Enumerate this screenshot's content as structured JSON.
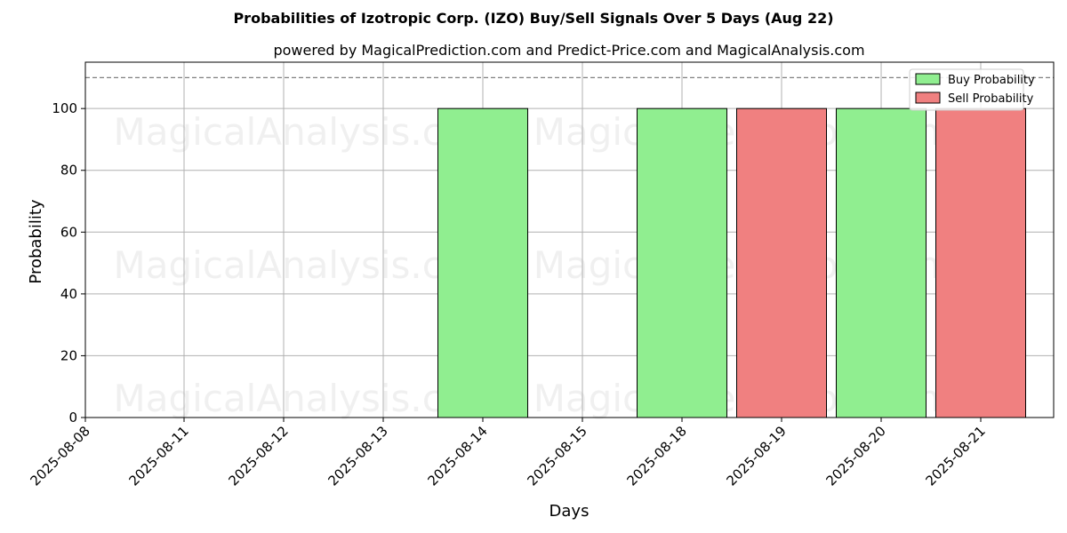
{
  "chart_data": {
    "type": "bar",
    "title": "Probabilities of Izotropic Corp. (IZO) Buy/Sell Signals Over 5 Days (Aug 22)",
    "subtitle": "powered by MagicalPrediction.com and Predict-Price.com and MagicalAnalysis.com",
    "xlabel": "Days",
    "ylabel": "Probability",
    "ylim": [
      0,
      115
    ],
    "yticks": [
      0,
      20,
      40,
      60,
      80,
      100
    ],
    "reference_line": 110,
    "grid": true,
    "legend_position": "top-right",
    "categories": [
      "2025-08-08",
      "2025-08-11",
      "2025-08-12",
      "2025-08-13",
      "2025-08-14",
      "2025-08-15",
      "2025-08-18",
      "2025-08-19",
      "2025-08-20",
      "2025-08-21"
    ],
    "series": [
      {
        "name": "Buy Probability",
        "color": "#90ee90",
        "values": [
          null,
          null,
          null,
          null,
          100,
          null,
          100,
          null,
          100,
          null
        ]
      },
      {
        "name": "Sell Probability",
        "color": "#f08080",
        "values": [
          null,
          null,
          null,
          null,
          null,
          null,
          null,
          100,
          null,
          100
        ]
      }
    ],
    "watermarks": [
      "MagicalAnalysis.com",
      "MagicalPrediction.com"
    ]
  }
}
